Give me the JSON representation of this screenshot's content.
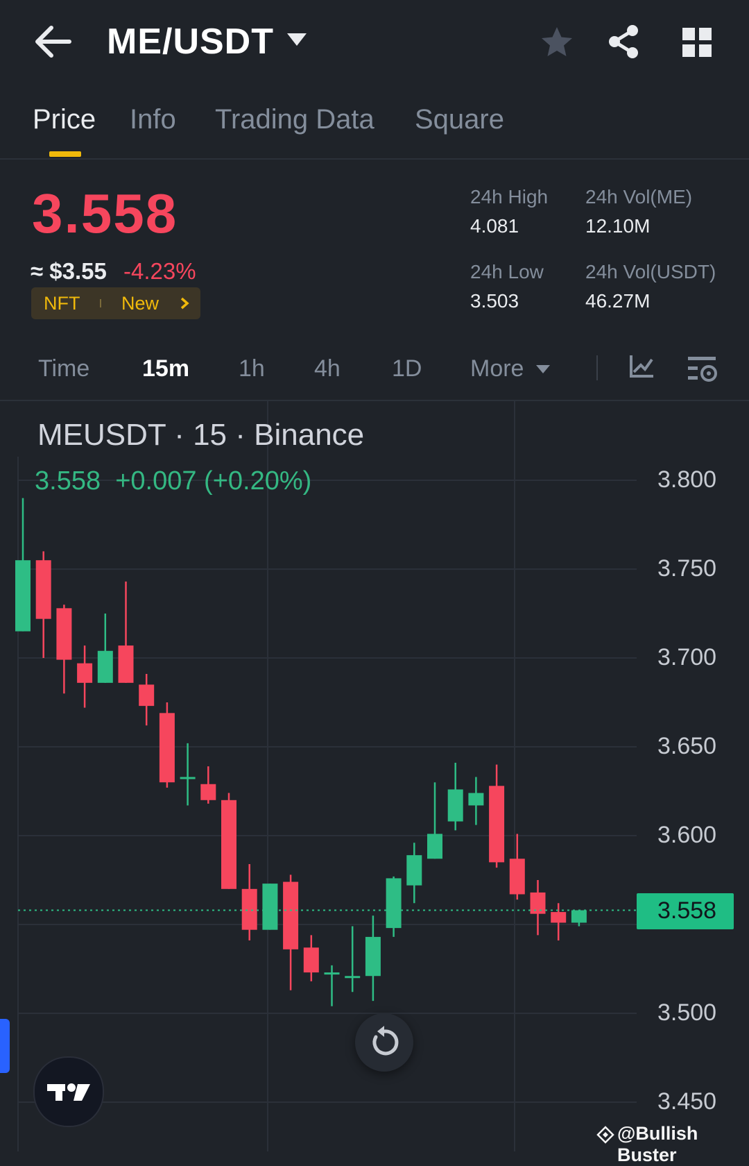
{
  "header": {
    "pair": "ME/USDT",
    "icons": [
      "back-arrow-icon",
      "favorite-star-icon",
      "share-icon",
      "grid-menu-icon"
    ]
  },
  "tabs": [
    {
      "label": "Price",
      "active": true
    },
    {
      "label": "Info",
      "active": false
    },
    {
      "label": "Trading Data",
      "active": false
    },
    {
      "label": "Square",
      "active": false
    }
  ],
  "ticker": {
    "last_price": "3.558",
    "usd_equiv": "≈ $3.55",
    "change_pct": "-4.23%",
    "tags": [
      "NFT",
      "New"
    ]
  },
  "stats": {
    "high_label": "24h High",
    "high_value": "4.081",
    "low_label": "24h Low",
    "low_value": "3.503",
    "vol_base_label": "24h Vol(ME)",
    "vol_base_value": "12.10M",
    "vol_quote_label": "24h Vol(USDT)",
    "vol_quote_value": "46.27M"
  },
  "timeframes": {
    "items": [
      "Time",
      "15m",
      "1h",
      "4h",
      "1D",
      "More"
    ],
    "active": "15m"
  },
  "chart": {
    "title": "MEUSDT · 15 · Binance",
    "last": "3.558",
    "change": "+0.007 (+0.20%)",
    "y_labels": [
      "3.800",
      "3.750",
      "3.700",
      "3.650",
      "3.600",
      "3.500",
      "3.450"
    ],
    "last_price_tag": "3.558"
  },
  "colors": {
    "background": "#1f2329",
    "up": "#2ebd85",
    "down": "#f6465d",
    "accent": "#f0b90b"
  },
  "watermark": "@Bullish Buster",
  "chart_data": {
    "type": "candlestick",
    "title": "MEUSDT · 15 · Binance",
    "ylim": [
      3.43,
      3.82
    ],
    "candles": [
      {
        "o": 3.715,
        "h": 3.79,
        "l": 3.715,
        "c": 3.755
      },
      {
        "o": 3.755,
        "h": 3.76,
        "l": 3.7,
        "c": 3.722
      },
      {
        "o": 3.728,
        "h": 3.73,
        "l": 3.68,
        "c": 3.699
      },
      {
        "o": 3.697,
        "h": 3.707,
        "l": 3.672,
        "c": 3.686
      },
      {
        "o": 3.686,
        "h": 3.725,
        "l": 3.686,
        "c": 3.704
      },
      {
        "o": 3.707,
        "h": 3.743,
        "l": 3.686,
        "c": 3.686
      },
      {
        "o": 3.685,
        "h": 3.691,
        "l": 3.662,
        "c": 3.673
      },
      {
        "o": 3.669,
        "h": 3.675,
        "l": 3.627,
        "c": 3.63
      },
      {
        "o": 3.633,
        "h": 3.652,
        "l": 3.617,
        "c": 3.633
      },
      {
        "o": 3.629,
        "h": 3.639,
        "l": 3.618,
        "c": 3.62
      },
      {
        "o": 3.62,
        "h": 3.624,
        "l": 3.57,
        "c": 3.57
      },
      {
        "o": 3.57,
        "h": 3.584,
        "l": 3.541,
        "c": 3.547
      },
      {
        "o": 3.547,
        "h": 3.573,
        "l": 3.547,
        "c": 3.573
      },
      {
        "o": 3.574,
        "h": 3.578,
        "l": 3.513,
        "c": 3.536
      },
      {
        "o": 3.537,
        "h": 3.544,
        "l": 3.518,
        "c": 3.523
      },
      {
        "o": 3.523,
        "h": 3.527,
        "l": 3.504,
        "c": 3.523
      },
      {
        "o": 3.521,
        "h": 3.549,
        "l": 3.512,
        "c": 3.521
      },
      {
        "o": 3.521,
        "h": 3.555,
        "l": 3.507,
        "c": 3.543
      },
      {
        "o": 3.548,
        "h": 3.577,
        "l": 3.543,
        "c": 3.576
      },
      {
        "o": 3.572,
        "h": 3.596,
        "l": 3.562,
        "c": 3.589
      },
      {
        "o": 3.587,
        "h": 3.63,
        "l": 3.587,
        "c": 3.601
      },
      {
        "o": 3.608,
        "h": 3.641,
        "l": 3.603,
        "c": 3.626
      },
      {
        "o": 3.617,
        "h": 3.633,
        "l": 3.606,
        "c": 3.624
      },
      {
        "o": 3.628,
        "h": 3.64,
        "l": 3.582,
        "c": 3.585
      },
      {
        "o": 3.587,
        "h": 3.601,
        "l": 3.564,
        "c": 3.567
      },
      {
        "o": 3.568,
        "h": 3.575,
        "l": 3.544,
        "c": 3.556
      },
      {
        "o": 3.557,
        "h": 3.562,
        "l": 3.541,
        "c": 3.551
      },
      {
        "o": 3.551,
        "h": 3.558,
        "l": 3.549,
        "c": 3.558
      }
    ]
  }
}
